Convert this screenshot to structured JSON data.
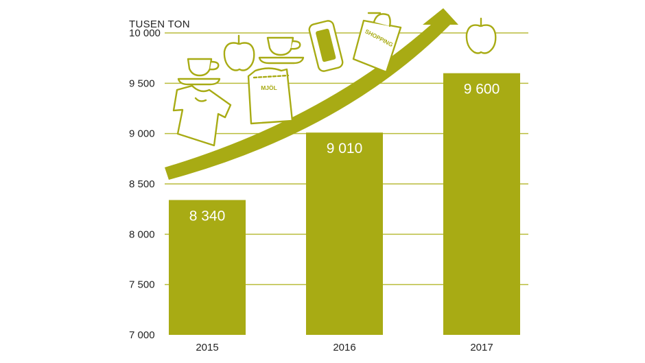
{
  "chart_data": {
    "type": "bar",
    "unit_label": "TUSEN TON",
    "categories": [
      "2015",
      "2016",
      "2017"
    ],
    "values": [
      8340,
      9010,
      9600
    ],
    "value_labels": [
      "8 340",
      "9 010",
      "9 600"
    ],
    "ylim": [
      7000,
      10000
    ],
    "yticks": [
      7000,
      7500,
      8000,
      8500,
      9000,
      9500,
      10000
    ],
    "ytick_labels": [
      "7 000",
      "7 500",
      "8 000",
      "8 500",
      "9 000",
      "9 500",
      "10 000"
    ],
    "grid": true,
    "bar_color": "#a8ab14",
    "grid_color": "#b9bc3a",
    "annotations": {
      "arrow": "upward-trend-arrow",
      "icons": [
        "t-shirt-icon",
        "coffee-cup-icon",
        "apple-icon",
        "flour-bag-icon",
        "coffee-cup-icon",
        "smartphone-icon",
        "shopping-bag-icon",
        "apple-icon"
      ],
      "icon_texts": {
        "flour_bag": "MJÖL",
        "shopping_bag": "SHOPPING"
      }
    }
  }
}
